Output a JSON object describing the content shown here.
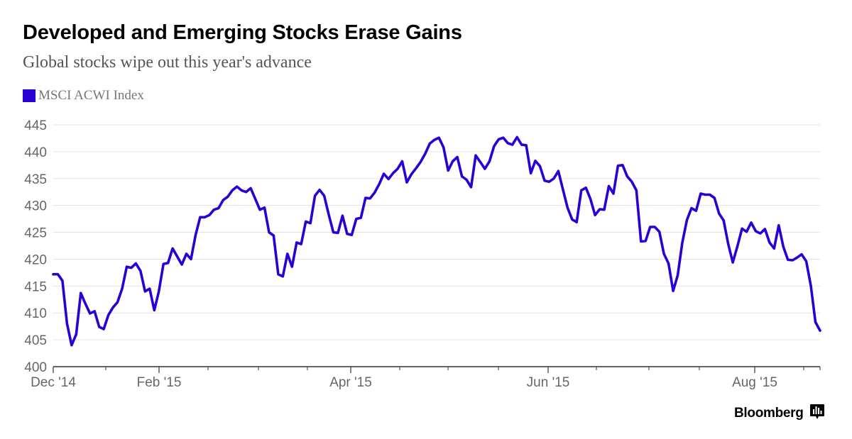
{
  "chart_data": {
    "type": "line",
    "title": "Developed and Emerging Stocks Erase Gains",
    "subtitle": "Global stocks wipe out this year's advance",
    "legend": [
      {
        "name": "MSCI ACWI Index",
        "color": "#2a00d4"
      }
    ],
    "x_tick_labels": [
      "Dec '14",
      "Feb '15",
      "Apr '15",
      "Jun '15",
      "Aug '15"
    ],
    "y_tick_labels": [
      "400",
      "405",
      "410",
      "415",
      "420",
      "425",
      "430",
      "435",
      "440",
      "445"
    ],
    "ylim": [
      400,
      445
    ],
    "grid": true,
    "series": [
      {
        "name": "MSCI ACWI Index",
        "color": "#2a00d4",
        "values": [
          417.2,
          417.2,
          416.0,
          408.0,
          404.0,
          406.0,
          413.7,
          411.7,
          409.9,
          410.3,
          407.4,
          407.0,
          409.6,
          411.0,
          412.0,
          414.5,
          418.6,
          418.4,
          419.2,
          417.8,
          414.0,
          414.5,
          410.5,
          414.0,
          419.1,
          419.3,
          422.0,
          420.5,
          419.0,
          421.0,
          420.0,
          424.5,
          427.8,
          427.8,
          428.2,
          429.2,
          429.5,
          431.0,
          431.6,
          432.8,
          433.5,
          432.8,
          432.5,
          433.2,
          431.2,
          429.2,
          429.6,
          425.0,
          424.4,
          417.2,
          416.8,
          421.0,
          418.6,
          423.1,
          422.8,
          427.0,
          426.7,
          431.8,
          432.9,
          431.8,
          428.3,
          425.0,
          424.9,
          428.1,
          424.7,
          424.5,
          427.5,
          427.7,
          431.4,
          431.3,
          432.4,
          434.0,
          435.9,
          434.9,
          436.0,
          436.8,
          438.2,
          434.3,
          435.8,
          436.9,
          438.1,
          439.6,
          441.5,
          442.2,
          442.6,
          440.8,
          436.5,
          438.2,
          439.0,
          435.4,
          434.8,
          433.4,
          439.3,
          438.1,
          436.8,
          438.2,
          441.0,
          442.3,
          442.6,
          441.6,
          441.3,
          442.7,
          441.3,
          441.2,
          436.0,
          438.3,
          437.3,
          434.6,
          434.4,
          435.0,
          436.4,
          433.0,
          429.6,
          427.4,
          426.9,
          432.8,
          433.3,
          431.2,
          428.2,
          429.3,
          429.2,
          433.6,
          432.2,
          437.4,
          437.5,
          435.4,
          434.4,
          432.8,
          423.3,
          423.4,
          426.0,
          426.0,
          425.1,
          421.0,
          419.2,
          414.1,
          417.0,
          423.1,
          427.3,
          429.5,
          429.0,
          432.2,
          432.0,
          432.0,
          431.4,
          428.5,
          427.2,
          422.8,
          419.4,
          422.4,
          425.7,
          425.1,
          426.8,
          425.2,
          424.8,
          425.6,
          423.1,
          422.0,
          426.3,
          422.3,
          419.9,
          419.8,
          420.3,
          420.9,
          419.6,
          415.0,
          408.3,
          406.7
        ]
      }
    ]
  },
  "brand": {
    "name": "Bloomberg",
    "icon": "bloomberg-bars-icon"
  }
}
